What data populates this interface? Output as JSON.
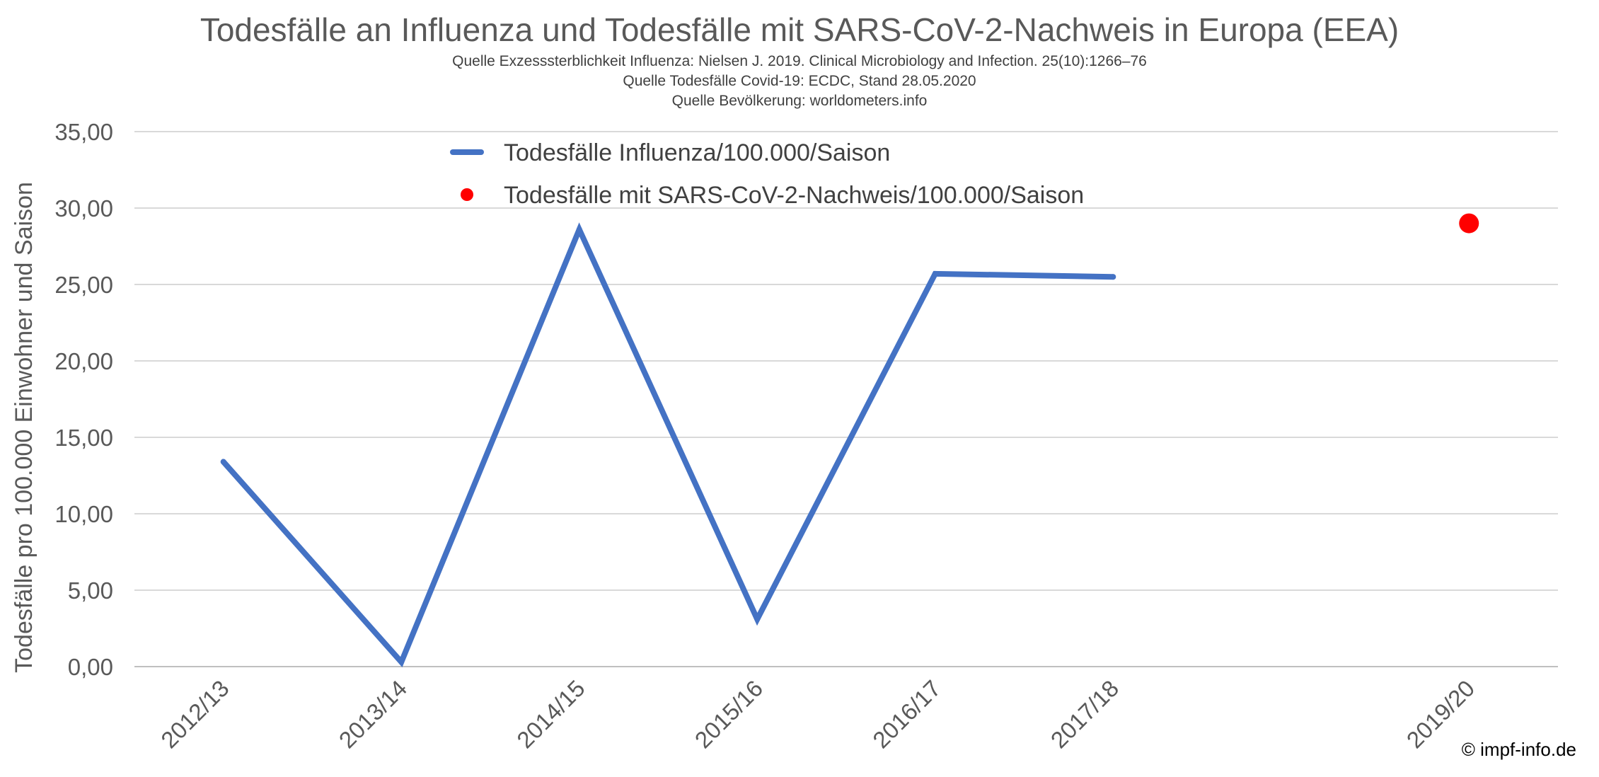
{
  "chart_data": {
    "type": "line",
    "title": "Todesfälle an Influenza und Todesfälle mit SARS-CoV-2-Nachweis in Europa (EEA)",
    "subtitles": [
      "Quelle Exzesssterblichkeit Influenza: Nielsen J. 2019. Clinical Microbiology and Infection. 25(10):1266–76",
      "Quelle Todesfälle Covid-19: ECDC, Stand 28.05.2020",
      "Quelle Bevölkerung: worldometers.info"
    ],
    "ylabel": "Todesfälle pro 100.000 Einwohner und Saison",
    "xlabel": "",
    "categories": [
      "2012/13",
      "2013/14",
      "2014/15",
      "2015/16",
      "2016/17",
      "2017/18",
      "",
      "2019/20"
    ],
    "ylim": [
      0,
      35
    ],
    "yticks": [
      "0,00",
      "5,00",
      "10,00",
      "15,00",
      "20,00",
      "25,00",
      "30,00",
      "35,00"
    ],
    "grid": true,
    "legend_position": "top",
    "series": [
      {
        "name": "Todesfälle Influenza/100.000/Saison",
        "kind": "line",
        "color": "#4472C4",
        "values": [
          13.4,
          0.3,
          28.6,
          3.1,
          25.7,
          25.5,
          null,
          null
        ]
      },
      {
        "name": "Todesfälle mit SARS-CoV-2-Nachweis/100.000/Saison",
        "kind": "marker",
        "color": "#FF0000",
        "values": [
          null,
          null,
          null,
          null,
          null,
          null,
          null,
          29.0
        ]
      }
    ]
  },
  "credit": "© impf-info.de"
}
